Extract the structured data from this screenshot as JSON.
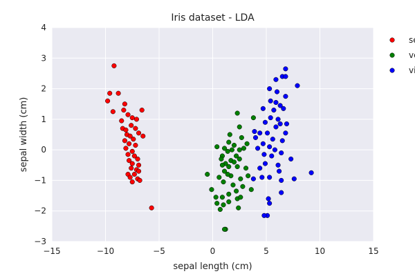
{
  "chart_data": {
    "type": "scatter",
    "title": "Iris dataset - LDA",
    "xlabel": "sepal length (cm)",
    "ylabel": "sepal width (cm)",
    "xlim": [
      -15,
      15
    ],
    "ylim": [
      -3,
      4
    ],
    "xticks": [
      -15,
      -10,
      -5,
      0,
      5,
      10,
      15
    ],
    "yticks": [
      -3,
      -2,
      -1,
      0,
      1,
      2,
      3,
      4
    ],
    "grid": true,
    "legend_position": "right-outside-top",
    "series": [
      {
        "name": "setosa",
        "color": "#ff0000",
        "points": [
          [
            -9.2,
            2.75
          ],
          [
            -9.6,
            1.85
          ],
          [
            -8.8,
            1.85
          ],
          [
            -9.8,
            1.6
          ],
          [
            -8.2,
            1.5
          ],
          [
            -9.3,
            1.25
          ],
          [
            -8.3,
            1.3
          ],
          [
            -6.6,
            1.3
          ],
          [
            -7.9,
            1.15
          ],
          [
            -8.5,
            0.95
          ],
          [
            -7.5,
            1.05
          ],
          [
            -7.1,
            1.0
          ],
          [
            -8.4,
            0.7
          ],
          [
            -8.1,
            0.65
          ],
          [
            -7.6,
            0.8
          ],
          [
            -7.2,
            0.7
          ],
          [
            -6.9,
            0.55
          ],
          [
            -8.0,
            0.5
          ],
          [
            -7.7,
            0.45
          ],
          [
            -7.4,
            0.35
          ],
          [
            -6.5,
            0.45
          ],
          [
            -8.2,
            0.3
          ],
          [
            -7.8,
            0.2
          ],
          [
            -7.2,
            0.15
          ],
          [
            -8.1,
            0.05
          ],
          [
            -7.5,
            -0.05
          ],
          [
            -7.9,
            -0.15
          ],
          [
            -7.3,
            -0.2
          ],
          [
            -7.8,
            -0.35
          ],
          [
            -7.0,
            -0.3
          ],
          [
            -7.5,
            -0.45
          ],
          [
            -6.9,
            -0.5
          ],
          [
            -7.6,
            -0.6
          ],
          [
            -7.1,
            -0.65
          ],
          [
            -7.9,
            -0.8
          ],
          [
            -7.3,
            -0.8
          ],
          [
            -6.9,
            -0.7
          ],
          [
            -7.7,
            -0.9
          ],
          [
            -7.0,
            -0.95
          ],
          [
            -7.5,
            -1.05
          ],
          [
            -6.8,
            -1.0
          ],
          [
            -5.7,
            -1.9
          ]
        ]
      },
      {
        "name": "versicolor",
        "color": "#008000",
        "points": [
          [
            2.3,
            1.2
          ],
          [
            2.5,
            0.75
          ],
          [
            1.6,
            0.5
          ],
          [
            1.5,
            0.25
          ],
          [
            0.4,
            0.1
          ],
          [
            1.1,
            0.05
          ],
          [
            0.9,
            -0.2
          ],
          [
            1.4,
            -0.05
          ],
          [
            2.0,
            0.15
          ],
          [
            2.5,
            0.0
          ],
          [
            2.9,
            0.05
          ],
          [
            2.2,
            -0.2
          ],
          [
            1.7,
            -0.35
          ],
          [
            2.0,
            -0.4
          ],
          [
            1.2,
            -0.45
          ],
          [
            0.9,
            -0.5
          ],
          [
            1.5,
            -0.55
          ],
          [
            2.3,
            -0.55
          ],
          [
            1.1,
            -0.7
          ],
          [
            0.6,
            -0.9
          ],
          [
            1.7,
            -0.85
          ],
          [
            2.6,
            -0.95
          ],
          [
            3.3,
            -0.85
          ],
          [
            1.0,
            -1.05
          ],
          [
            -0.1,
            -1.3
          ],
          [
            1.9,
            -1.15
          ],
          [
            2.8,
            -1.2
          ],
          [
            2.2,
            -1.35
          ],
          [
            1.5,
            -1.45
          ],
          [
            0.9,
            -1.55
          ],
          [
            0.3,
            -1.55
          ],
          [
            2.3,
            -1.6
          ],
          [
            1.5,
            -1.7
          ],
          [
            1.0,
            -1.8
          ],
          [
            0.4,
            -1.75
          ],
          [
            2.4,
            -1.9
          ],
          [
            0.7,
            -1.95
          ],
          [
            1.2,
            -2.6
          ],
          [
            1.1,
            -2.6
          ],
          [
            3.8,
            1.05
          ],
          [
            3.2,
            0.2
          ],
          [
            2.7,
            0.4
          ],
          [
            -0.5,
            -0.8
          ],
          [
            3.1,
            -0.6
          ],
          [
            2.5,
            -0.3
          ],
          [
            1.8,
            0.0
          ],
          [
            0.8,
            -0.3
          ],
          [
            2.6,
            -1.55
          ],
          [
            3.6,
            -1.3
          ],
          [
            1.4,
            -0.8
          ]
        ]
      },
      {
        "name": "virginica",
        "color": "#0000ff",
        "points": [
          [
            6.8,
            2.65
          ],
          [
            6.5,
            2.4
          ],
          [
            6.8,
            2.4
          ],
          [
            5.9,
            2.3
          ],
          [
            7.9,
            2.1
          ],
          [
            5.3,
            2.0
          ],
          [
            6.0,
            1.9
          ],
          [
            5.4,
            1.6
          ],
          [
            6.8,
            1.75
          ],
          [
            5.9,
            1.55
          ],
          [
            6.3,
            1.45
          ],
          [
            4.7,
            1.35
          ],
          [
            5.7,
            1.3
          ],
          [
            6.6,
            1.35
          ],
          [
            5.4,
            1.05
          ],
          [
            6.1,
            1.0
          ],
          [
            4.9,
            0.9
          ],
          [
            6.3,
            0.85
          ],
          [
            6.9,
            0.85
          ],
          [
            5.9,
            0.75
          ],
          [
            3.9,
            0.6
          ],
          [
            4.4,
            0.55
          ],
          [
            5.1,
            0.55
          ],
          [
            6.8,
            0.55
          ],
          [
            4.0,
            0.4
          ],
          [
            5.6,
            0.35
          ],
          [
            6.5,
            0.3
          ],
          [
            4.7,
            0.2
          ],
          [
            5.3,
            0.1
          ],
          [
            4.2,
            0.05
          ],
          [
            5.8,
            0.0
          ],
          [
            6.4,
            -0.1
          ],
          [
            4.8,
            -0.15
          ],
          [
            5.5,
            -0.2
          ],
          [
            7.3,
            -0.3
          ],
          [
            4.9,
            -0.45
          ],
          [
            6.1,
            -0.5
          ],
          [
            4.4,
            -0.6
          ],
          [
            6.2,
            -0.7
          ],
          [
            9.2,
            -0.75
          ],
          [
            4.6,
            -0.9
          ],
          [
            5.3,
            -0.9
          ],
          [
            3.8,
            -0.95
          ],
          [
            6.4,
            -1.0
          ],
          [
            7.6,
            -0.95
          ],
          [
            6.4,
            -1.4
          ],
          [
            5.2,
            -1.6
          ],
          [
            5.3,
            -1.75
          ],
          [
            5.1,
            -2.15
          ],
          [
            4.8,
            -2.15
          ]
        ]
      }
    ]
  }
}
